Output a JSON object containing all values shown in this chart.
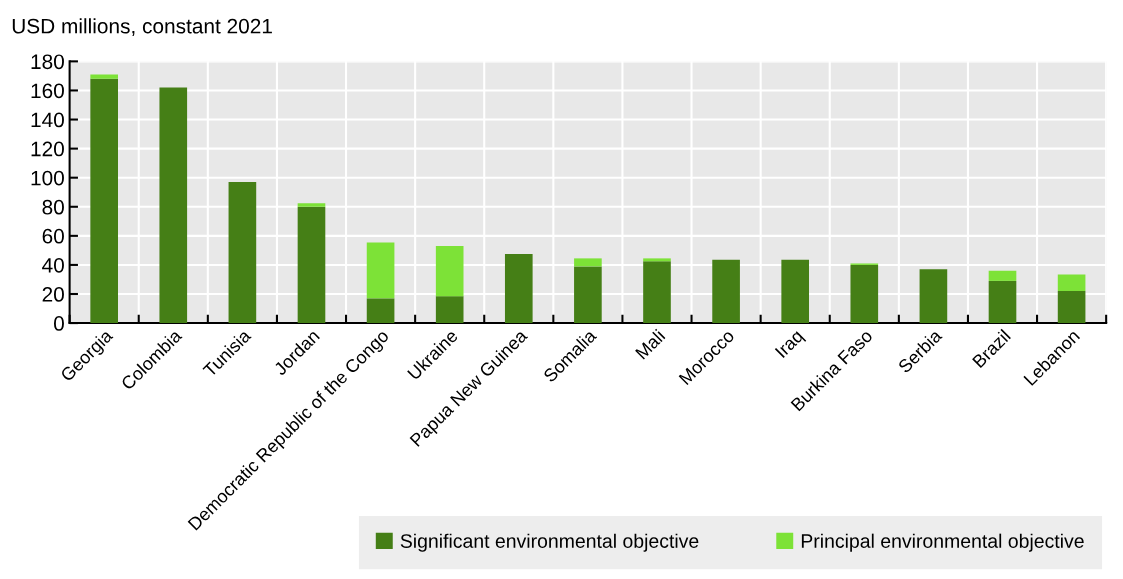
{
  "chart_data": {
    "type": "bar",
    "stacked": true,
    "ylabel": "USD millions, constant 2021",
    "categories": [
      "Georgia",
      "Colombia",
      "Tunisia",
      "Jordan",
      "Democratic Republic of the Congo",
      "Ukraine",
      "Papua New Guinea",
      "Somalia",
      "Mali",
      "Morocco",
      "Iraq",
      "Burkina Faso",
      "Serbia",
      "Brazil",
      "Lebanon"
    ],
    "series": [
      {
        "name": "Significant environmental objective",
        "color": "#457f16",
        "values": [
          168,
          162,
          97,
          80,
          17,
          18.5,
          47.5,
          39,
          42.5,
          43.5,
          43.5,
          40,
          37,
          29,
          22
        ]
      },
      {
        "name": "Principal environmental objective",
        "color": "#7de237",
        "values": [
          3,
          0,
          0,
          2.5,
          38.5,
          34.5,
          0,
          5.5,
          2,
          0,
          0,
          1,
          0,
          7,
          11.5
        ]
      }
    ],
    "ylim": [
      0,
      180
    ],
    "yticks": [
      0,
      20,
      40,
      60,
      80,
      100,
      120,
      140,
      160,
      180
    ],
    "grid": true,
    "legend": "bottom right"
  }
}
